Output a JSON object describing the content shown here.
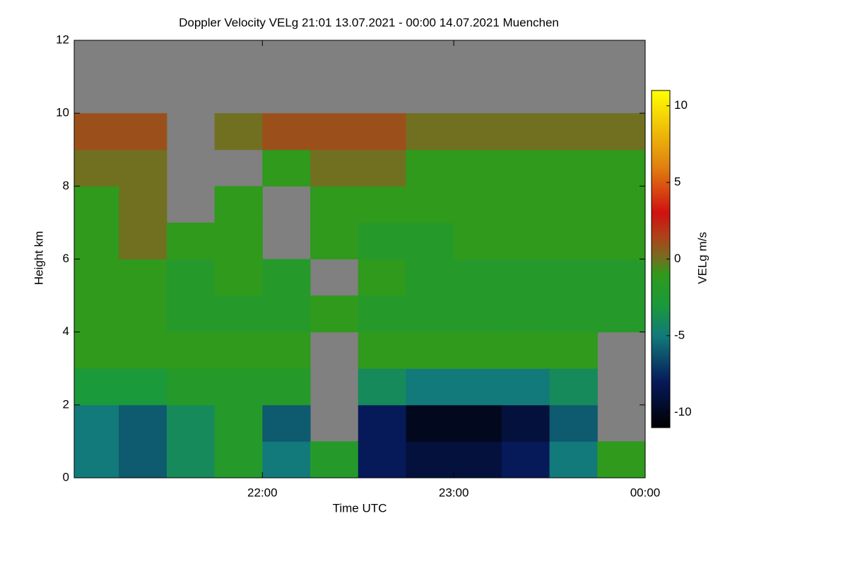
{
  "chart_data": {
    "type": "heatmap",
    "title": "Doppler Velocity VELg   21:01 13.07.2021 - 00:00 14.07.2021 Muenchen",
    "xlabel": "Time UTC",
    "ylabel": "Height km",
    "colorbar_label": "VELg m/s",
    "xlim": [
      21.0167,
      24.0
    ],
    "xticks": [
      {
        "value": 22,
        "label": "22:00"
      },
      {
        "value": 23,
        "label": "23:00"
      },
      {
        "value": 24,
        "label": "00:00"
      }
    ],
    "ylim": [
      0,
      12
    ],
    "yticks": [
      0,
      2,
      4,
      6,
      8,
      10,
      12
    ],
    "zlim": [
      -11,
      11
    ],
    "zticks": [
      -10,
      -5,
      0,
      5,
      10
    ],
    "colorscale": [
      [
        -11,
        "#000000"
      ],
      [
        -8,
        "#061a5a"
      ],
      [
        -5,
        "#127a7a"
      ],
      [
        -3,
        "#1a9a3a"
      ],
      [
        -1,
        "#2f9a1c"
      ],
      [
        0,
        "#707020"
      ],
      [
        1.5,
        "#b04018"
      ],
      [
        3,
        "#d01010"
      ],
      [
        6,
        "#e08010"
      ],
      [
        11,
        "#ffff00"
      ]
    ],
    "missing_color": "#808080",
    "x_bins": [
      21.0167,
      21.25,
      21.5,
      21.75,
      22.0,
      22.25,
      22.5,
      22.75,
      23.0,
      23.25,
      23.5,
      23.75,
      24.0
    ],
    "y_bins": [
      0,
      1,
      2,
      3,
      4,
      5,
      6,
      7,
      8,
      9,
      10,
      11,
      12
    ],
    "values": [
      [
        -5,
        -6,
        -4,
        -2,
        -5,
        -2,
        -8,
        -9,
        -9,
        -8,
        -5,
        -1
      ],
      [
        -5,
        -6,
        -4,
        -2,
        -6,
        null,
        -8,
        -10,
        -10,
        -9,
        -6,
        null
      ],
      [
        -3,
        -3,
        -2,
        -2,
        -2,
        null,
        -4,
        -5,
        -5,
        -5,
        -4,
        null
      ],
      [
        -1,
        -1,
        -1,
        -1,
        -1,
        null,
        -1,
        -1,
        -1,
        -1,
        -1,
        null
      ],
      [
        -1,
        -1,
        -2,
        -2,
        -2,
        -1,
        -2,
        -2,
        -2,
        -2,
        -2,
        -2
      ],
      [
        -1,
        -1,
        -2,
        -1,
        -2,
        null,
        -1,
        -2,
        -2,
        -2,
        -2,
        -2
      ],
      [
        -1,
        0,
        -1,
        -1,
        null,
        -1,
        -2,
        -2,
        -1,
        -1,
        -1,
        -1
      ],
      [
        -1,
        0,
        null,
        -1,
        null,
        -1,
        -1,
        -1,
        -1,
        -1,
        -1,
        -1
      ],
      [
        0,
        0,
        null,
        null,
        -1,
        0,
        0,
        -1,
        -1,
        -1,
        -1,
        -1
      ],
      [
        1,
        1,
        null,
        0,
        1,
        1,
        1,
        0,
        0,
        0,
        0,
        0
      ],
      [
        null,
        null,
        null,
        null,
        null,
        null,
        null,
        null,
        null,
        null,
        null,
        null
      ],
      [
        null,
        null,
        null,
        null,
        null,
        null,
        null,
        null,
        null,
        null,
        null,
        null
      ]
    ]
  }
}
